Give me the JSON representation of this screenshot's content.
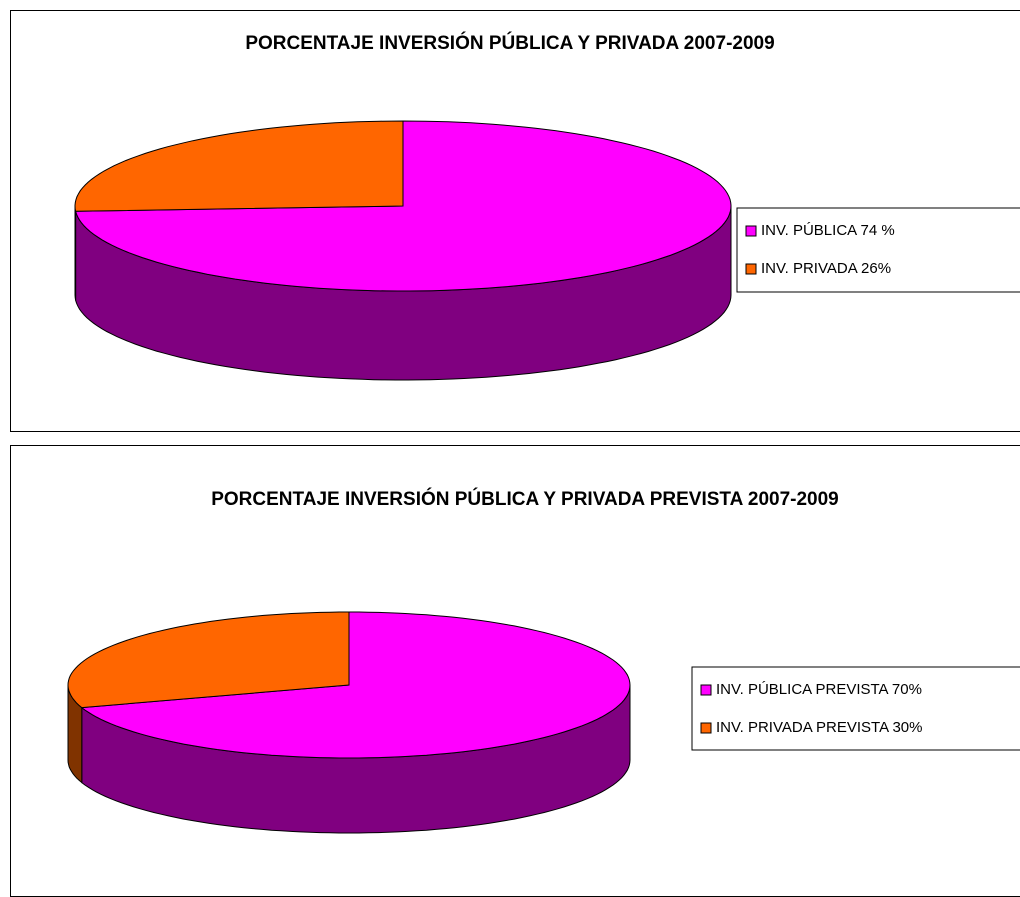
{
  "chart_data": [
    {
      "type": "pie",
      "title": "PORCENTAJE INVERSIÓN PÚBLICA Y PRIVADA 2007-2009",
      "categories": [
        "INV. PÚBLICA 74 %",
        "INV. PRIVADA 26%"
      ],
      "values": [
        74,
        26
      ],
      "colors": [
        "#ff00ff",
        "#ff6600"
      ],
      "side_colors": [
        "#800080",
        "#803300"
      ],
      "legend": "right"
    },
    {
      "type": "pie",
      "title": "PORCENTAJE INVERSIÓN PÚBLICA Y PRIVADA PREVISTA 2007-2009",
      "categories": [
        "INV. PÚBLICA PREVISTA 70%",
        "INV. PRIVADA PREVISTA 30%"
      ],
      "values": [
        70,
        30
      ],
      "colors": [
        "#ff00ff",
        "#ff6600"
      ],
      "side_colors": [
        "#800080",
        "#803300"
      ],
      "legend": "right"
    }
  ]
}
